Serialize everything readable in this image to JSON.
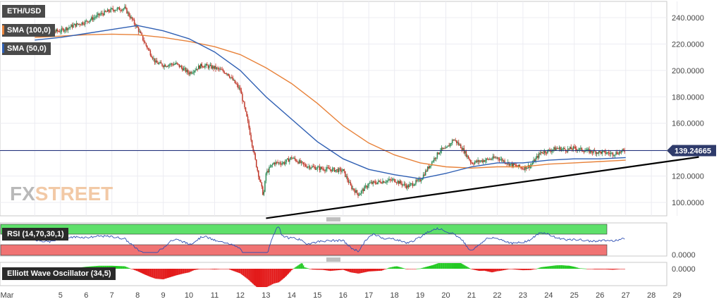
{
  "symbol": "ETH/USD",
  "indicators": {
    "sma100_label": "SMA (100,0)",
    "sma50_label": "SMA (50,0)",
    "rsi_label": "RSI (14,70,30,1)",
    "ewo_label": "Elliott Wave Oscillator (34,5)"
  },
  "watermark": {
    "fx": "FX",
    "street": "STREET"
  },
  "price_badge": "139.24665",
  "rsi_axis_label": "0.0000",
  "ewo_axis_label": "0.0000",
  "colors": {
    "sma50": "#2f5fb3",
    "sma100": "#e8823a",
    "trendline": "#000000",
    "up_candle": "#2e8b57",
    "down_candle": "#c0392b",
    "price_line": "#1f2f7a",
    "rsi_overbought": "#5ee06a",
    "rsi_oversold": "#f07373",
    "ewo_up": "#22c922",
    "ewo_down": "#e31b1b"
  },
  "chart_data": {
    "type": "candlestick",
    "x_labels": [
      "Mar",
      "5",
      "6",
      "7",
      "8",
      "9",
      "10",
      "11",
      "12",
      "13",
      "14",
      "15",
      "16",
      "17",
      "18",
      "19",
      "20",
      "21",
      "22",
      "23",
      "24",
      "25",
      "26",
      "27",
      "28",
      "29"
    ],
    "ylim": [
      88,
      250
    ],
    "y_ticks": [
      "240.0000",
      "220.0000",
      "200.0000",
      "180.0000",
      "160.0000",
      "140.0000",
      "120.0000",
      "100.0000"
    ],
    "last_price": 139.24665,
    "close_series": [
      {
        "x": 4.0,
        "y": 232
      },
      {
        "x": 4.5,
        "y": 229
      },
      {
        "x": 5.0,
        "y": 230
      },
      {
        "x": 5.5,
        "y": 234
      },
      {
        "x": 6.0,
        "y": 237
      },
      {
        "x": 6.5,
        "y": 242
      },
      {
        "x": 7.0,
        "y": 246
      },
      {
        "x": 7.5,
        "y": 247
      },
      {
        "x": 7.8,
        "y": 238
      },
      {
        "x": 8.0,
        "y": 232
      },
      {
        "x": 8.3,
        "y": 220
      },
      {
        "x": 8.7,
        "y": 206
      },
      {
        "x": 9.0,
        "y": 204
      },
      {
        "x": 9.5,
        "y": 205
      },
      {
        "x": 10.0,
        "y": 198
      },
      {
        "x": 10.5,
        "y": 204
      },
      {
        "x": 11.0,
        "y": 202
      },
      {
        "x": 11.5,
        "y": 198
      },
      {
        "x": 12.0,
        "y": 185
      },
      {
        "x": 12.3,
        "y": 160
      },
      {
        "x": 12.6,
        "y": 130
      },
      {
        "x": 12.9,
        "y": 105
      },
      {
        "x": 13.0,
        "y": 122
      },
      {
        "x": 13.3,
        "y": 130
      },
      {
        "x": 13.7,
        "y": 130
      },
      {
        "x": 14.0,
        "y": 134
      },
      {
        "x": 14.5,
        "y": 128
      },
      {
        "x": 15.0,
        "y": 126
      },
      {
        "x": 15.5,
        "y": 125
      },
      {
        "x": 16.0,
        "y": 124
      },
      {
        "x": 16.3,
        "y": 112
      },
      {
        "x": 16.6,
        "y": 106
      },
      {
        "x": 17.0,
        "y": 114
      },
      {
        "x": 17.5,
        "y": 116
      },
      {
        "x": 18.0,
        "y": 117
      },
      {
        "x": 18.5,
        "y": 112
      },
      {
        "x": 19.0,
        "y": 117
      },
      {
        "x": 19.5,
        "y": 132
      },
      {
        "x": 19.8,
        "y": 140
      },
      {
        "x": 20.0,
        "y": 140
      },
      {
        "x": 20.3,
        "y": 148
      },
      {
        "x": 20.6,
        "y": 142
      },
      {
        "x": 21.0,
        "y": 130
      },
      {
        "x": 21.5,
        "y": 132
      },
      {
        "x": 22.0,
        "y": 134
      },
      {
        "x": 22.5,
        "y": 129
      },
      {
        "x": 23.0,
        "y": 126
      },
      {
        "x": 23.3,
        "y": 128
      },
      {
        "x": 23.7,
        "y": 138
      },
      {
        "x": 24.0,
        "y": 139
      },
      {
        "x": 24.3,
        "y": 141
      },
      {
        "x": 24.7,
        "y": 140
      },
      {
        "x": 25.0,
        "y": 141
      },
      {
        "x": 25.5,
        "y": 139
      },
      {
        "x": 26.0,
        "y": 138
      },
      {
        "x": 26.5,
        "y": 137
      },
      {
        "x": 27.0,
        "y": 139.2
      }
    ],
    "sma50": [
      {
        "x": 4.0,
        "y": 223
      },
      {
        "x": 5.0,
        "y": 225
      },
      {
        "x": 6.0,
        "y": 228
      },
      {
        "x": 7.0,
        "y": 231
      },
      {
        "x": 8.0,
        "y": 234
      },
      {
        "x": 9.0,
        "y": 230
      },
      {
        "x": 10.0,
        "y": 224
      },
      {
        "x": 11.0,
        "y": 214
      },
      {
        "x": 12.0,
        "y": 200
      },
      {
        "x": 13.0,
        "y": 180
      },
      {
        "x": 14.0,
        "y": 163
      },
      {
        "x": 15.0,
        "y": 146
      },
      {
        "x": 16.0,
        "y": 133
      },
      {
        "x": 17.0,
        "y": 125
      },
      {
        "x": 18.0,
        "y": 121
      },
      {
        "x": 19.0,
        "y": 118
      },
      {
        "x": 20.0,
        "y": 122
      },
      {
        "x": 21.0,
        "y": 127
      },
      {
        "x": 22.0,
        "y": 130
      },
      {
        "x": 23.0,
        "y": 130
      },
      {
        "x": 24.0,
        "y": 132
      },
      {
        "x": 25.0,
        "y": 133
      },
      {
        "x": 26.0,
        "y": 133
      },
      {
        "x": 27.0,
        "y": 134
      }
    ],
    "sma100": [
      {
        "x": 4.0,
        "y": 225
      },
      {
        "x": 5.0,
        "y": 226
      },
      {
        "x": 6.0,
        "y": 227
      },
      {
        "x": 7.0,
        "y": 227.5
      },
      {
        "x": 8.0,
        "y": 227
      },
      {
        "x": 9.0,
        "y": 225
      },
      {
        "x": 10.0,
        "y": 222
      },
      {
        "x": 11.0,
        "y": 218
      },
      {
        "x": 12.0,
        "y": 212
      },
      {
        "x": 13.0,
        "y": 202
      },
      {
        "x": 14.0,
        "y": 190
      },
      {
        "x": 15.0,
        "y": 175
      },
      {
        "x": 16.0,
        "y": 158
      },
      {
        "x": 17.0,
        "y": 145
      },
      {
        "x": 18.0,
        "y": 136
      },
      {
        "x": 19.0,
        "y": 130
      },
      {
        "x": 20.0,
        "y": 127
      },
      {
        "x": 21.0,
        "y": 126
      },
      {
        "x": 22.0,
        "y": 127
      },
      {
        "x": 23.0,
        "y": 127
      },
      {
        "x": 24.0,
        "y": 129
      },
      {
        "x": 25.0,
        "y": 130
      },
      {
        "x": 26.0,
        "y": 131
      },
      {
        "x": 27.0,
        "y": 132
      }
    ],
    "trendline": [
      {
        "x": 13.0,
        "y": 88
      },
      {
        "x": 29.3,
        "y": 136
      }
    ]
  }
}
